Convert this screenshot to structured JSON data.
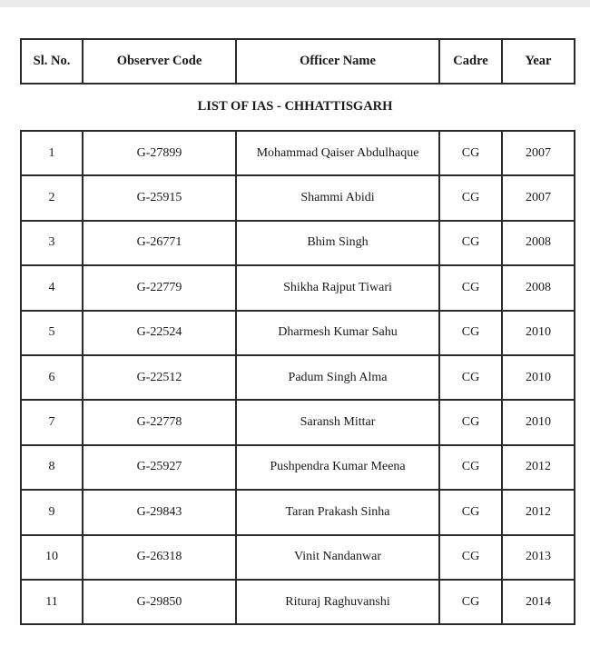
{
  "header": {
    "columns": [
      "Sl. No.",
      "Observer Code",
      "Officer Name",
      "Cadre",
      "Year"
    ]
  },
  "title": "LIST OF IAS - CHHATTISGARH",
  "rows": [
    [
      "1",
      "G-27899",
      "Mohammad Qaiser Abdulhaque",
      "CG",
      "2007"
    ],
    [
      "2",
      "G-25915",
      "Shammi Abidi",
      "CG",
      "2007"
    ],
    [
      "3",
      "G-26771",
      "Bhim Singh",
      "CG",
      "2008"
    ],
    [
      "4",
      "G-22779",
      "Shikha Rajput Tiwari",
      "CG",
      "2008"
    ],
    [
      "5",
      "G-22524",
      "Dharmesh Kumar Sahu",
      "CG",
      "2010"
    ],
    [
      "6",
      "G-22512",
      "Padum Singh Alma",
      "CG",
      "2010"
    ],
    [
      "7",
      "G-22778",
      "Saransh Mittar",
      "CG",
      "2010"
    ],
    [
      "8",
      "G-25927",
      "Pushpendra Kumar Meena",
      "CG",
      "2012"
    ],
    [
      "9",
      "G-29843",
      "Taran Prakash Sinha",
      "CG",
      "2012"
    ],
    [
      "10",
      "G-26318",
      "Vinit Nandanwar",
      "CG",
      "2013"
    ],
    [
      "11",
      "G-29850",
      "Rituraj Raghuvanshi",
      "CG",
      "2014"
    ]
  ]
}
